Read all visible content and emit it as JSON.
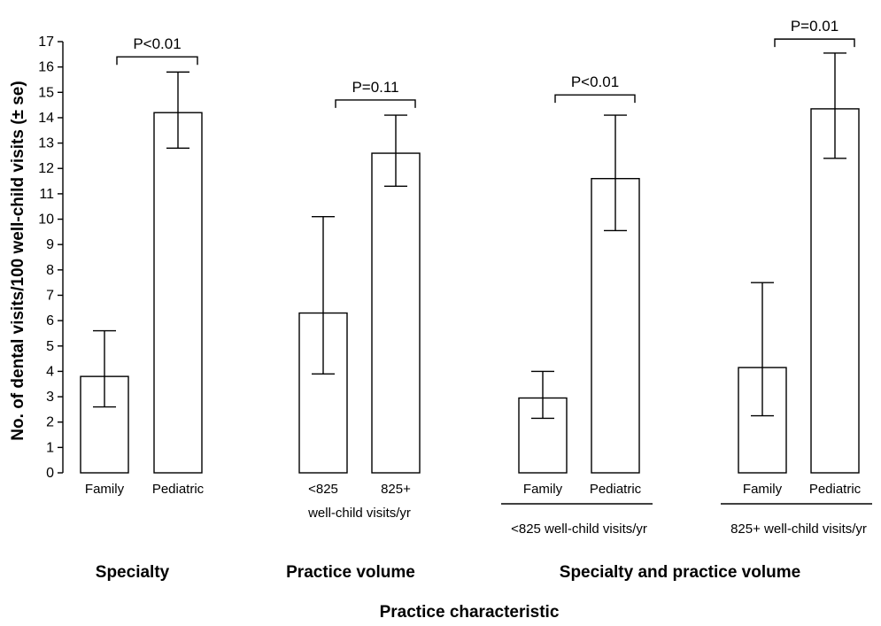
{
  "chart_data": {
    "type": "bar",
    "ylabel": "No. of dental visits/100 well-child visits (± se)",
    "xlabel": "Practice characteristic",
    "ylim": [
      0,
      17
    ],
    "yticks": [
      0,
      1,
      2,
      3,
      4,
      5,
      6,
      7,
      8,
      9,
      10,
      11,
      12,
      13,
      14,
      15,
      16,
      17
    ],
    "grid": false,
    "bars": [
      {
        "category": "Family",
        "value": 3.8,
        "err_low": 2.6,
        "err_high": 5.6
      },
      {
        "category": "Pediatric",
        "value": 14.2,
        "err_low": 12.8,
        "err_high": 15.8
      },
      {
        "category": "<825",
        "value": 6.3,
        "err_low": 3.9,
        "err_high": 10.1
      },
      {
        "category": "825+",
        "value": 12.6,
        "err_low": 11.3,
        "err_high": 14.1
      },
      {
        "category": "Family",
        "value": 2.95,
        "err_low": 2.15,
        "err_high": 4.0
      },
      {
        "category": "Pediatric",
        "value": 11.6,
        "err_low": 9.55,
        "err_high": 14.1
      },
      {
        "category": "Family",
        "value": 4.15,
        "err_low": 2.25,
        "err_high": 7.5
      },
      {
        "category": "Pediatric",
        "value": 14.35,
        "err_low": 12.4,
        "err_high": 16.55
      }
    ],
    "comparisons": [
      {
        "bars": [
          0,
          1
        ],
        "label": "P<0.01",
        "level": 16.4
      },
      {
        "bars": [
          2,
          3
        ],
        "label": "P=0.11",
        "level": 14.7
      },
      {
        "bars": [
          4,
          5
        ],
        "label": "P<0.01",
        "level": 14.9
      },
      {
        "bars": [
          6,
          7
        ],
        "label": "P=0.01",
        "level": 17.1
      }
    ],
    "sub_labels": [
      {
        "bars": [
          2,
          3
        ],
        "text": "well-child visits/yr",
        "underline": false
      },
      {
        "bars": [
          4,
          5
        ],
        "text": "<825 well-child visits/yr",
        "underline": true
      },
      {
        "bars": [
          6,
          7
        ],
        "text": "825+ well-child visits/yr",
        "underline": true
      }
    ],
    "groups": [
      {
        "bars": [
          0,
          1
        ],
        "label": "Specialty"
      },
      {
        "bars": [
          2,
          3
        ],
        "label": "Practice volume"
      },
      {
        "bars": [
          4,
          7
        ],
        "label": "Specialty and practice volume"
      }
    ]
  }
}
